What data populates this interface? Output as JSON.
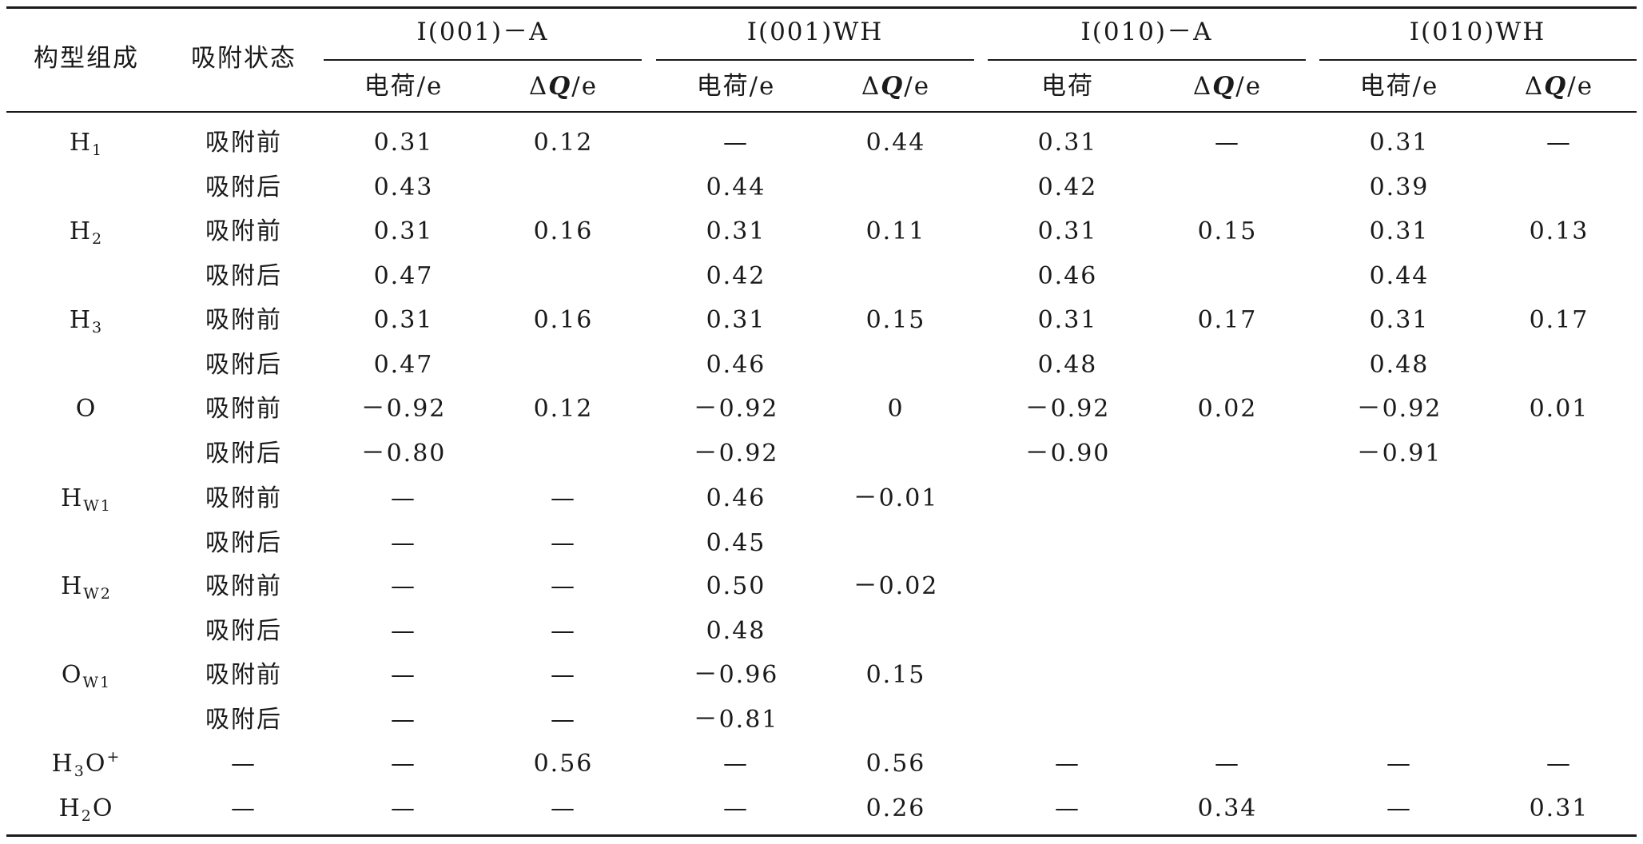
{
  "headers": {
    "composition": "构型组成",
    "state": "吸附状态",
    "groups": [
      "I(001)－A",
      "I(001)WH",
      "I(010)－A",
      "I(010)WH"
    ],
    "sub": [
      {
        "main": "电荷",
        "unit": "/e"
      },
      {
        "delta": "Δ",
        "q": "Q",
        "unit": "/e"
      },
      {
        "main": "电荷",
        "unit": "/e"
      },
      {
        "delta": "Δ",
        "q": "Q",
        "unit": "/e"
      },
      {
        "main": "电荷",
        "unit": ""
      },
      {
        "delta": "Δ",
        "q": "Q",
        "unit": "/e"
      },
      {
        "main": "电荷",
        "unit": "/e"
      },
      {
        "delta": "Δ",
        "q": "Q",
        "unit": "/e"
      }
    ]
  },
  "rows": [
    {
      "label": {
        "base": "H",
        "sub": "1",
        "sup": ""
      },
      "state": "吸附前",
      "cells": [
        "0.31",
        "0.12",
        "—",
        "0.44",
        "0.31",
        "—",
        "0.31",
        "—"
      ]
    },
    {
      "label": {
        "base": "",
        "sub": "",
        "sup": ""
      },
      "state": "吸附后",
      "cells": [
        "0.43",
        "",
        "0.44",
        "",
        "0.42",
        "",
        "0.39",
        ""
      ]
    },
    {
      "label": {
        "base": "H",
        "sub": "2",
        "sup": ""
      },
      "state": "吸附前",
      "cells": [
        "0.31",
        "0.16",
        "0.31",
        "0.11",
        "0.31",
        "0.15",
        "0.31",
        "0.13"
      ]
    },
    {
      "label": {
        "base": "",
        "sub": "",
        "sup": ""
      },
      "state": "吸附后",
      "cells": [
        "0.47",
        "",
        "0.42",
        "",
        "0.46",
        "",
        "0.44",
        ""
      ]
    },
    {
      "label": {
        "base": "H",
        "sub": "3",
        "sup": ""
      },
      "state": "吸附前",
      "cells": [
        "0.31",
        "0.16",
        "0.31",
        "0.15",
        "0.31",
        "0.17",
        "0.31",
        "0.17"
      ]
    },
    {
      "label": {
        "base": "",
        "sub": "",
        "sup": ""
      },
      "state": "吸附后",
      "cells": [
        "0.47",
        "",
        "0.46",
        "",
        "0.48",
        "",
        "0.48",
        ""
      ]
    },
    {
      "label": {
        "base": "O",
        "sub": "",
        "sup": ""
      },
      "state": "吸附前",
      "cells": [
        "－0.92",
        "0.12",
        "－0.92",
        "0",
        "－0.92",
        "0.02",
        "－0.92",
        "0.01"
      ]
    },
    {
      "label": {
        "base": "",
        "sub": "",
        "sup": ""
      },
      "state": "吸附后",
      "cells": [
        "－0.80",
        "",
        "－0.92",
        "",
        "－0.90",
        "",
        "－0.91",
        ""
      ]
    },
    {
      "label": {
        "base": "H",
        "sub": "W1",
        "sup": ""
      },
      "state": "吸附前",
      "cells": [
        "—",
        "—",
        "0.46",
        "－0.01",
        "",
        "",
        "",
        ""
      ]
    },
    {
      "label": {
        "base": "",
        "sub": "",
        "sup": ""
      },
      "state": "吸附后",
      "cells": [
        "—",
        "—",
        "0.45",
        "",
        "",
        "",
        "",
        ""
      ]
    },
    {
      "label": {
        "base": "H",
        "sub": "W2",
        "sup": ""
      },
      "state": "吸附前",
      "cells": [
        "—",
        "—",
        "0.50",
        "－0.02",
        "",
        "",
        "",
        ""
      ]
    },
    {
      "label": {
        "base": "",
        "sub": "",
        "sup": ""
      },
      "state": "吸附后",
      "cells": [
        "—",
        "—",
        "0.48",
        "",
        "",
        "",
        "",
        ""
      ]
    },
    {
      "label": {
        "base": "O",
        "sub": "W1",
        "sup": ""
      },
      "state": "吸附前",
      "cells": [
        "—",
        "—",
        "－0.96",
        "0.15",
        "",
        "",
        "",
        ""
      ]
    },
    {
      "label": {
        "base": "",
        "sub": "",
        "sup": ""
      },
      "state": "吸附后",
      "cells": [
        "—",
        "—",
        "－0.81",
        "",
        "",
        "",
        "",
        ""
      ]
    },
    {
      "label": {
        "base": "H",
        "sub": "3",
        "sup": "+",
        "tail": "O"
      },
      "state": "—",
      "cells": [
        "—",
        "0.56",
        "—",
        "0.56",
        "—",
        "—",
        "—",
        "—"
      ]
    },
    {
      "label": {
        "base": "H",
        "sub": "2",
        "sup": "",
        "tail": "O"
      },
      "state": "—",
      "cells": [
        "—",
        "—",
        "—",
        "0.26",
        "—",
        "0.34",
        "—",
        "0.31"
      ]
    }
  ]
}
